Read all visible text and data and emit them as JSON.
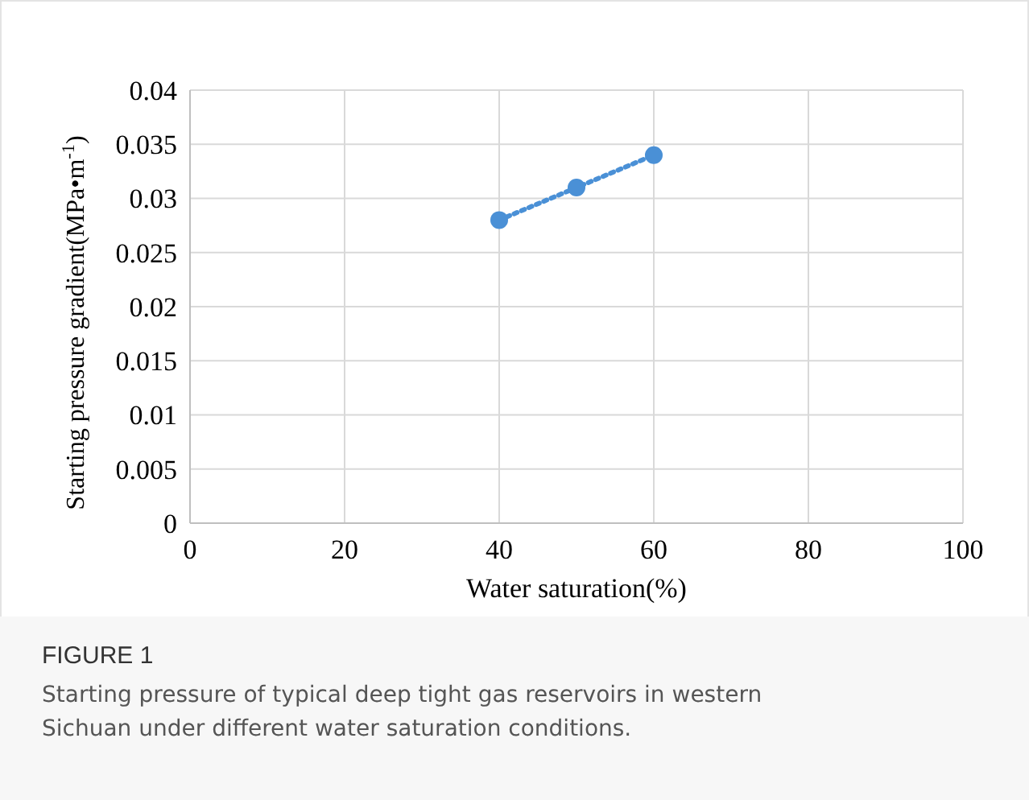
{
  "chart_data": {
    "type": "line",
    "xlabel": "Water saturation(%)",
    "ylabel": "Starting pressure gradient(MPa•m$^{-1}$)",
    "x": [
      40,
      50,
      60
    ],
    "series": [
      {
        "color": "#4a90d6",
        "values": [
          0.028,
          0.031,
          0.034
        ]
      }
    ],
    "xlim": [
      0,
      100
    ],
    "xticks": [
      0,
      20,
      40,
      60,
      80,
      100
    ],
    "ylim": [
      0,
      0.04
    ],
    "yticks": [
      0,
      0.005,
      0.01,
      0.015,
      0.02,
      0.025,
      0.03,
      0.035,
      0.04
    ],
    "grid": true,
    "marker": "circle",
    "line_style": "dotted",
    "annotations": [
      "FIGURE 1",
      "Starting pressure of typical deep tight gas reservoirs in western Sichuan under different water saturation conditions."
    ]
  }
}
